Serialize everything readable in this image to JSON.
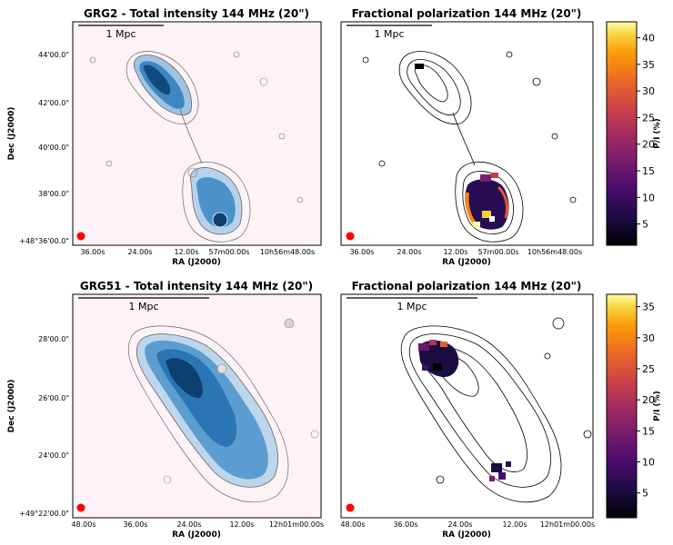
{
  "figure": {
    "rows": [
      {
        "intensity_panel": {
          "title": "GRG2 - Total intensity 144 MHz (20\")",
          "scale_bar_label": "1 Mpc",
          "xlabel": "RA (J2000)",
          "ylabel": "Dec (J2000)",
          "xticks": [
            "36.00s",
            "24.00s",
            "12.00s",
            "57m00.00s",
            "10h56m48.00s"
          ],
          "yticks": [
            "44'00.0\"",
            "42'00.0\"",
            "40'00.0\"",
            "38'00.0\"",
            "+48°36'00.0\""
          ]
        },
        "polarization_panel": {
          "title": "Fractional polarization 144 MHz (20\")",
          "scale_bar_label": "1 Mpc",
          "xlabel": "RA (J2000)",
          "xticks": [
            "36.00s",
            "24.00s",
            "12.00s",
            "57m00.00s",
            "10h56m48.00s"
          ]
        },
        "colorbar": {
          "label": "P/I (%)",
          "ticks": [
            "5",
            "10",
            "15",
            "20",
            "25",
            "30",
            "35",
            "40"
          ],
          "range": [
            1,
            43
          ]
        }
      },
      {
        "intensity_panel": {
          "title": "GRG51 - Total intensity 144 MHz (20\")",
          "scale_bar_label": "1 Mpc",
          "xlabel": "RA (J2000)",
          "ylabel": "Dec (J2000)",
          "xticks": [
            "48.00s",
            "36.00s",
            "24.00s",
            "12.00s",
            "12h01m00.00s"
          ],
          "yticks": [
            "28'00.0\"",
            "26'00.0\"",
            "24'00.0\"",
            "+49°22'00.0\""
          ]
        },
        "polarization_panel": {
          "title": "Fractional polarization 144 MHz (20\")",
          "scale_bar_label": "1 Mpc",
          "xlabel": "RA (J2000)",
          "xticks": [
            "48.00s",
            "36.00s",
            "24.00s",
            "12.00s",
            "12h01m00.00s"
          ]
        },
        "colorbar": {
          "label": "P/I (%)",
          "ticks": [
            "5",
            "10",
            "15",
            "20",
            "25",
            "30",
            "35"
          ],
          "range": [
            1,
            37
          ]
        }
      }
    ],
    "colors": {
      "intensity_background": "#fdf3f7",
      "beam": "#ff0000",
      "contour": "#555555",
      "polarization_low": "#1b0c41",
      "polarization_high": "#fcffa4"
    },
    "colormap": "inferno"
  }
}
